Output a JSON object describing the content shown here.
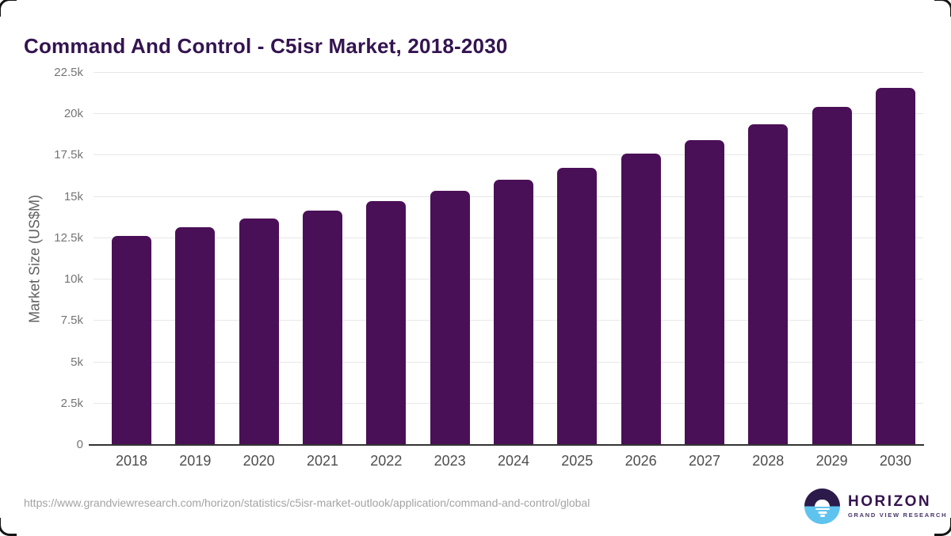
{
  "title": "Command And Control - C5isr Market, 2018-2030",
  "chart_data": {
    "type": "bar",
    "title": "Command And Control - C5isr Market, 2018-2030",
    "categories": [
      "2018",
      "2019",
      "2020",
      "2021",
      "2022",
      "2023",
      "2024",
      "2025",
      "2026",
      "2027",
      "2028",
      "2029",
      "2030"
    ],
    "values": [
      12650,
      13150,
      13700,
      14150,
      14750,
      15350,
      16050,
      16750,
      17600,
      18450,
      19400,
      20450,
      21600
    ],
    "xlabel": "",
    "ylabel": "Market Size (US$M)",
    "ylim": [
      0,
      22500
    ],
    "ytick_step": 2500,
    "ytick_labels": [
      "0",
      "2.5k",
      "5k",
      "7.5k",
      "10k",
      "12.5k",
      "15k",
      "17.5k",
      "20k",
      "22.5k"
    ],
    "grid": true,
    "legend": "none",
    "bar_color": "#4a1057"
  },
  "footer": {
    "source_url": "https://www.grandviewresearch.com/horizon/statistics/c5isr-market-outlook/application/command-and-control/global",
    "logo_name": "HORIZON",
    "logo_subtitle": "GRAND VIEW RESEARCH"
  },
  "colors": {
    "bar": "#4a1057",
    "title": "#331450",
    "axis_line": "#333333",
    "gridline": "#e7e7e7",
    "tick_label": "#757575",
    "x_label": "#4d4d4d",
    "url_text": "#a3a3a3",
    "logo_dark": "#2b1a4a",
    "logo_blue": "#5fc3ef"
  }
}
